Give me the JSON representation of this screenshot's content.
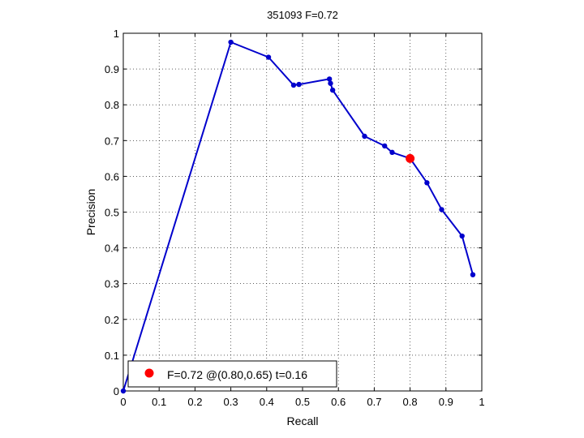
{
  "chart_data": {
    "type": "line",
    "title": "351093 F=0.72",
    "xlabel": "Recall",
    "ylabel": "Precision",
    "xlim": [
      0,
      1
    ],
    "ylim": [
      0,
      1
    ],
    "x_ticks": [
      0,
      0.1,
      0.2,
      0.3,
      0.4,
      0.5,
      0.6,
      0.7,
      0.8,
      0.9,
      1
    ],
    "y_ticks": [
      0,
      0.1,
      0.2,
      0.3,
      0.4,
      0.5,
      0.6,
      0.7,
      0.8,
      0.9,
      1
    ],
    "x_tick_labels": [
      "0",
      "0.1",
      "0.2",
      "0.3",
      "0.4",
      "0.5",
      "0.6",
      "0.7",
      "0.8",
      "0.9",
      "1"
    ],
    "y_tick_labels": [
      "0",
      "0.1",
      "0.2",
      "0.3",
      "0.4",
      "0.5",
      "0.6",
      "0.7",
      "0.8",
      "0.9",
      "1"
    ],
    "grid": true,
    "series": [
      {
        "color": "#0000cc",
        "x": [
          0.0,
          0.3,
          0.405,
          0.475,
          0.49,
          0.575,
          0.578,
          0.584,
          0.673,
          0.729,
          0.75,
          0.8,
          0.847,
          0.888,
          0.945,
          0.975
        ],
        "y": [
          0.0,
          0.975,
          0.933,
          0.855,
          0.857,
          0.872,
          0.86,
          0.841,
          0.712,
          0.685,
          0.667,
          0.65,
          0.582,
          0.507,
          0.433,
          0.325
        ]
      }
    ],
    "highlight_point": {
      "x": 0.8,
      "y": 0.65,
      "color": "#ff0000"
    },
    "legend": {
      "placement": "bottom-left",
      "label": "F=0.72 @(0.80,0.65) t=0.16"
    }
  }
}
